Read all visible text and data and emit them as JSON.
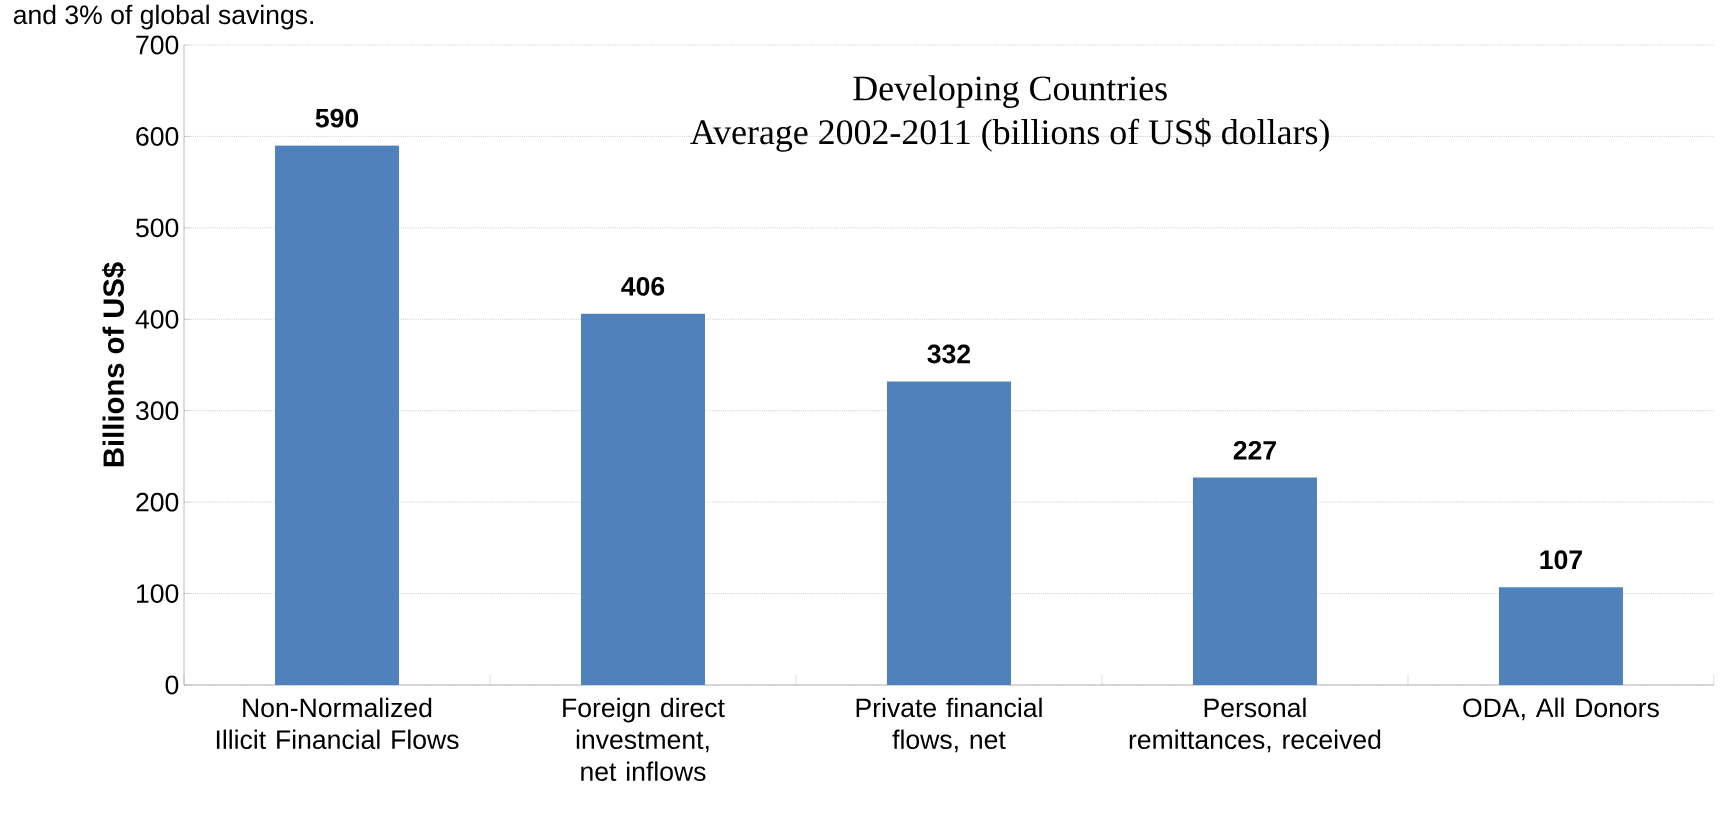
{
  "chart_data": {
    "type": "bar",
    "title": "Developing Countries",
    "subtitle": "Average 2002-2011 (billions of US$ dollars)",
    "ylabel": "Billions of US$",
    "annotations": [
      "and 3% of global savings."
    ],
    "categories": [
      "Non-Normalized Illicit Financial Flows",
      "Foreign direct investment, net inflows",
      "Private financial flows, net",
      "Personal remittances, received",
      "ODA, All Donors"
    ],
    "values": [
      590,
      406,
      332,
      227,
      107
    ],
    "color": "#4f81bd",
    "ylim": [
      0,
      700
    ],
    "yticks": [
      0,
      100,
      200,
      300,
      400,
      500,
      600,
      700
    ],
    "grid": "y",
    "data_labels": true
  }
}
